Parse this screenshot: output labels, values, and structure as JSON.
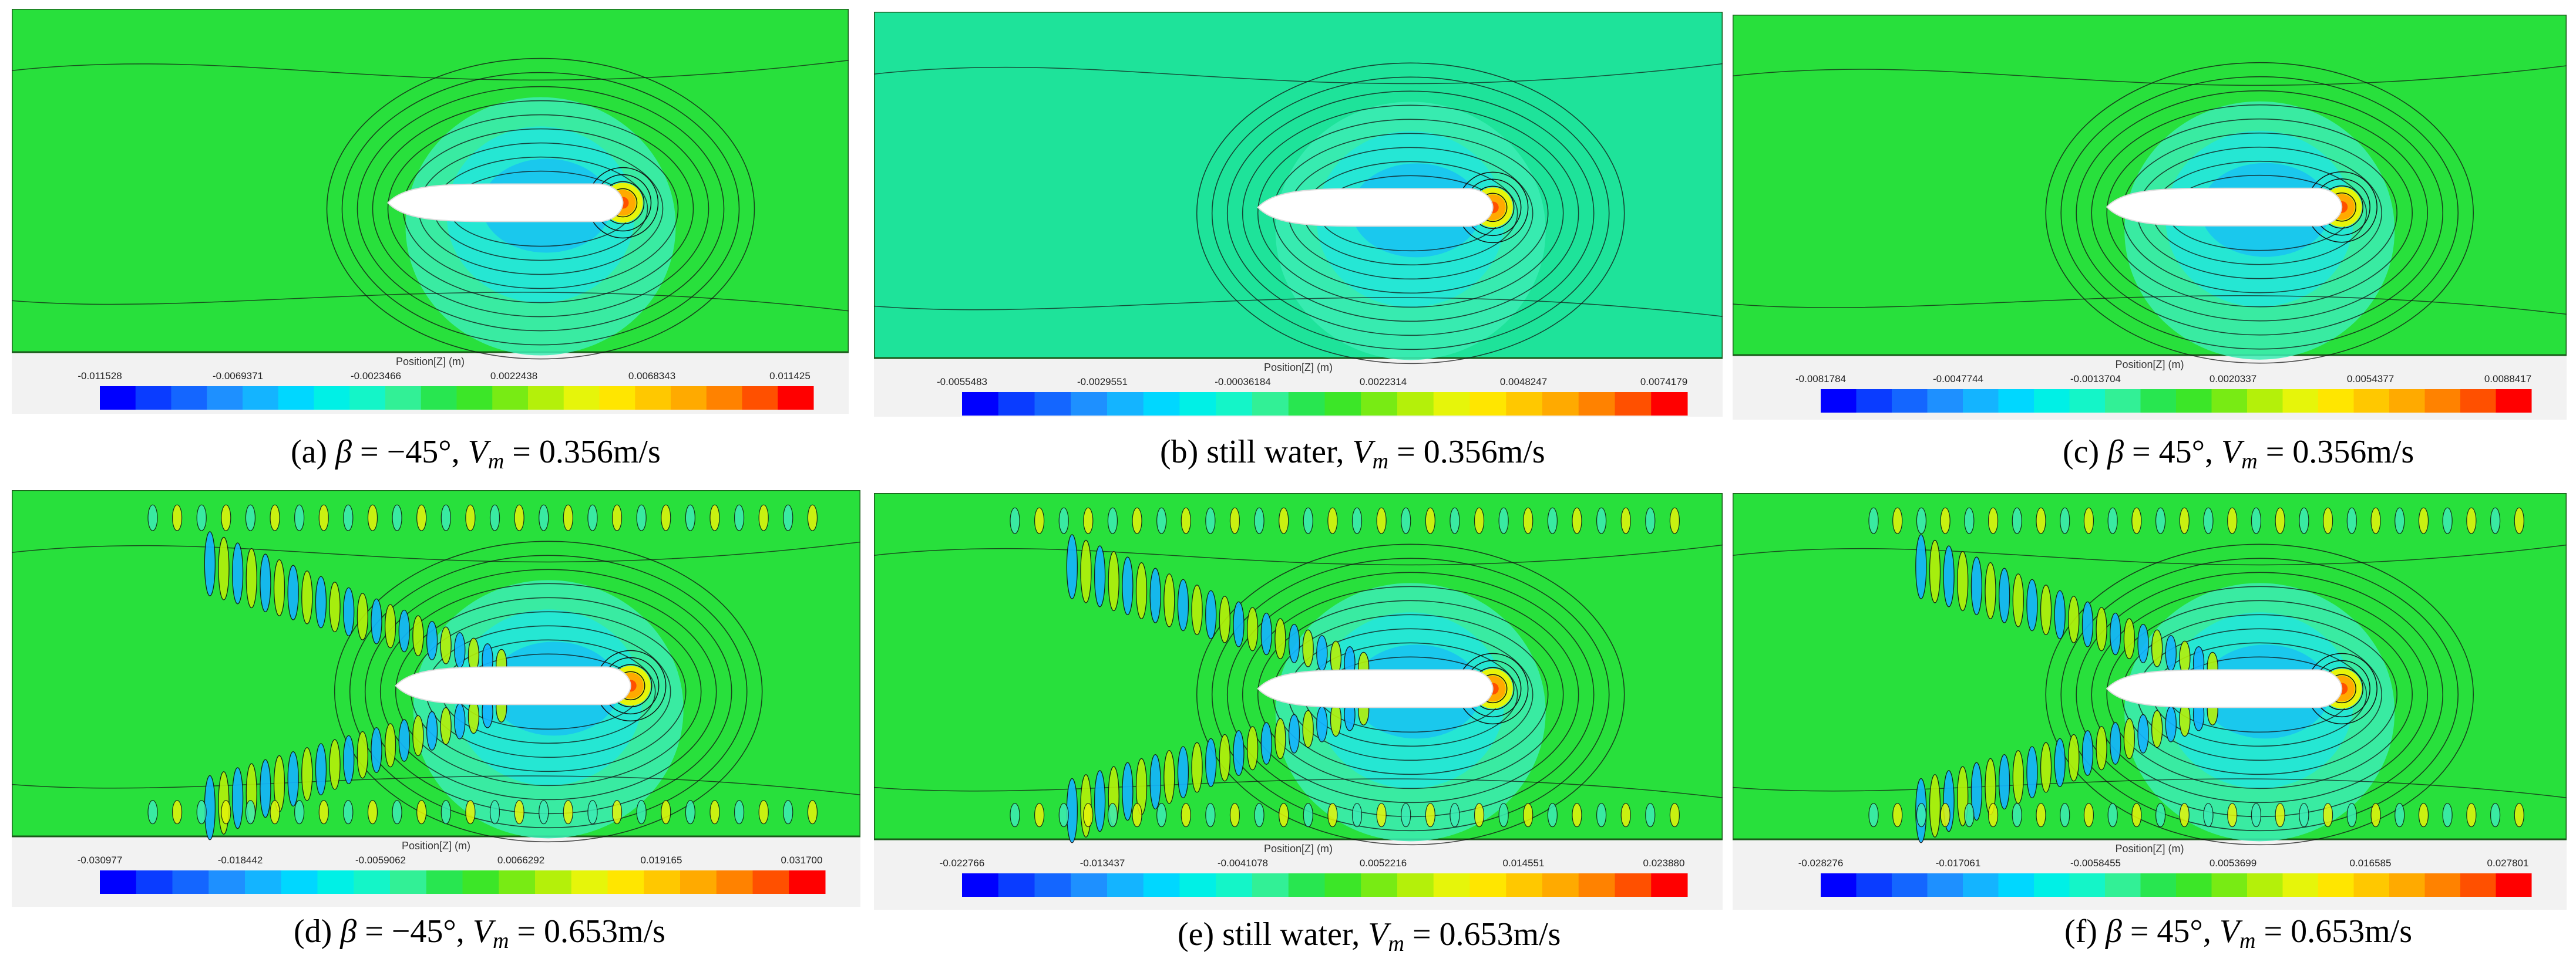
{
  "colormap": [
    "#0000ff",
    "#0a3cff",
    "#1466ff",
    "#1e90ff",
    "#14b4ff",
    "#00d7ff",
    "#00f0e6",
    "#14f5c8",
    "#32f096",
    "#28e650",
    "#3ce628",
    "#78eb14",
    "#b4f00a",
    "#e6f50a",
    "#ffe600",
    "#ffc800",
    "#ffaa00",
    "#ff8200",
    "#ff5000",
    "#ff0000"
  ],
  "field_color": "#28e03c",
  "panels": [
    {
      "id": "a",
      "legend_title": "Position[Z] (m)",
      "ticks": [
        "-0.011528",
        "-0.0069371",
        "-0.0023466",
        "0.0022438",
        "0.0068343",
        "0.011425"
      ],
      "caption": {
        "prefix": "(a) ",
        "beta_sym": "β",
        "beta": " = −45°, ",
        "v": "V",
        "sub": "m",
        "rest": " = 0.356m/s"
      }
    },
    {
      "id": "b",
      "legend_title": "Position[Z] (m)",
      "ticks": [
        "-0.0055483",
        "-0.0029551",
        "-0.00036184",
        "0.0022314",
        "0.0048247",
        "0.0074179"
      ],
      "caption": {
        "prefix": "(b) still water, ",
        "beta_sym": "",
        "beta": "",
        "v": "V",
        "sub": "m",
        "rest": " = 0.356m/s"
      }
    },
    {
      "id": "c",
      "legend_title": "Position[Z] (m)",
      "ticks": [
        "-0.0081784",
        "-0.0047744",
        "-0.0013704",
        "0.0020337",
        "0.0054377",
        "0.0088417"
      ],
      "caption": {
        "prefix": "(c) ",
        "beta_sym": "β",
        "beta": " = 45°, ",
        "v": "V",
        "sub": "m",
        "rest": " = 0.356m/s"
      }
    },
    {
      "id": "d",
      "legend_title": "Position[Z] (m)",
      "ticks": [
        "-0.030977",
        "-0.018442",
        "-0.0059062",
        "0.0066292",
        "0.019165",
        "0.031700"
      ],
      "caption": {
        "prefix": "(d) ",
        "beta_sym": "β",
        "beta": " = −45°, ",
        "v": "V",
        "sub": "m",
        "rest": " = 0.653m/s"
      }
    },
    {
      "id": "e",
      "legend_title": "Position[Z] (m)",
      "ticks": [
        "-0.022766",
        "-0.013437",
        "-0.0041078",
        "0.0052216",
        "0.014551",
        "0.023880"
      ],
      "caption": {
        "prefix": "(e) still water, ",
        "beta_sym": "",
        "beta": "",
        "v": "V",
        "sub": "m",
        "rest": " = 0.653m/s"
      }
    },
    {
      "id": "f",
      "legend_title": "Position[Z] (m)",
      "ticks": [
        "-0.028276",
        "-0.017061",
        "-0.0058455",
        "0.0053699",
        "0.016585",
        "0.027801"
      ],
      "caption": {
        "prefix": "(f) ",
        "beta_sym": "β",
        "beta": " = 45°, ",
        "v": "V",
        "sub": "m",
        "rest": " = 0.653m/s"
      }
    }
  ]
}
